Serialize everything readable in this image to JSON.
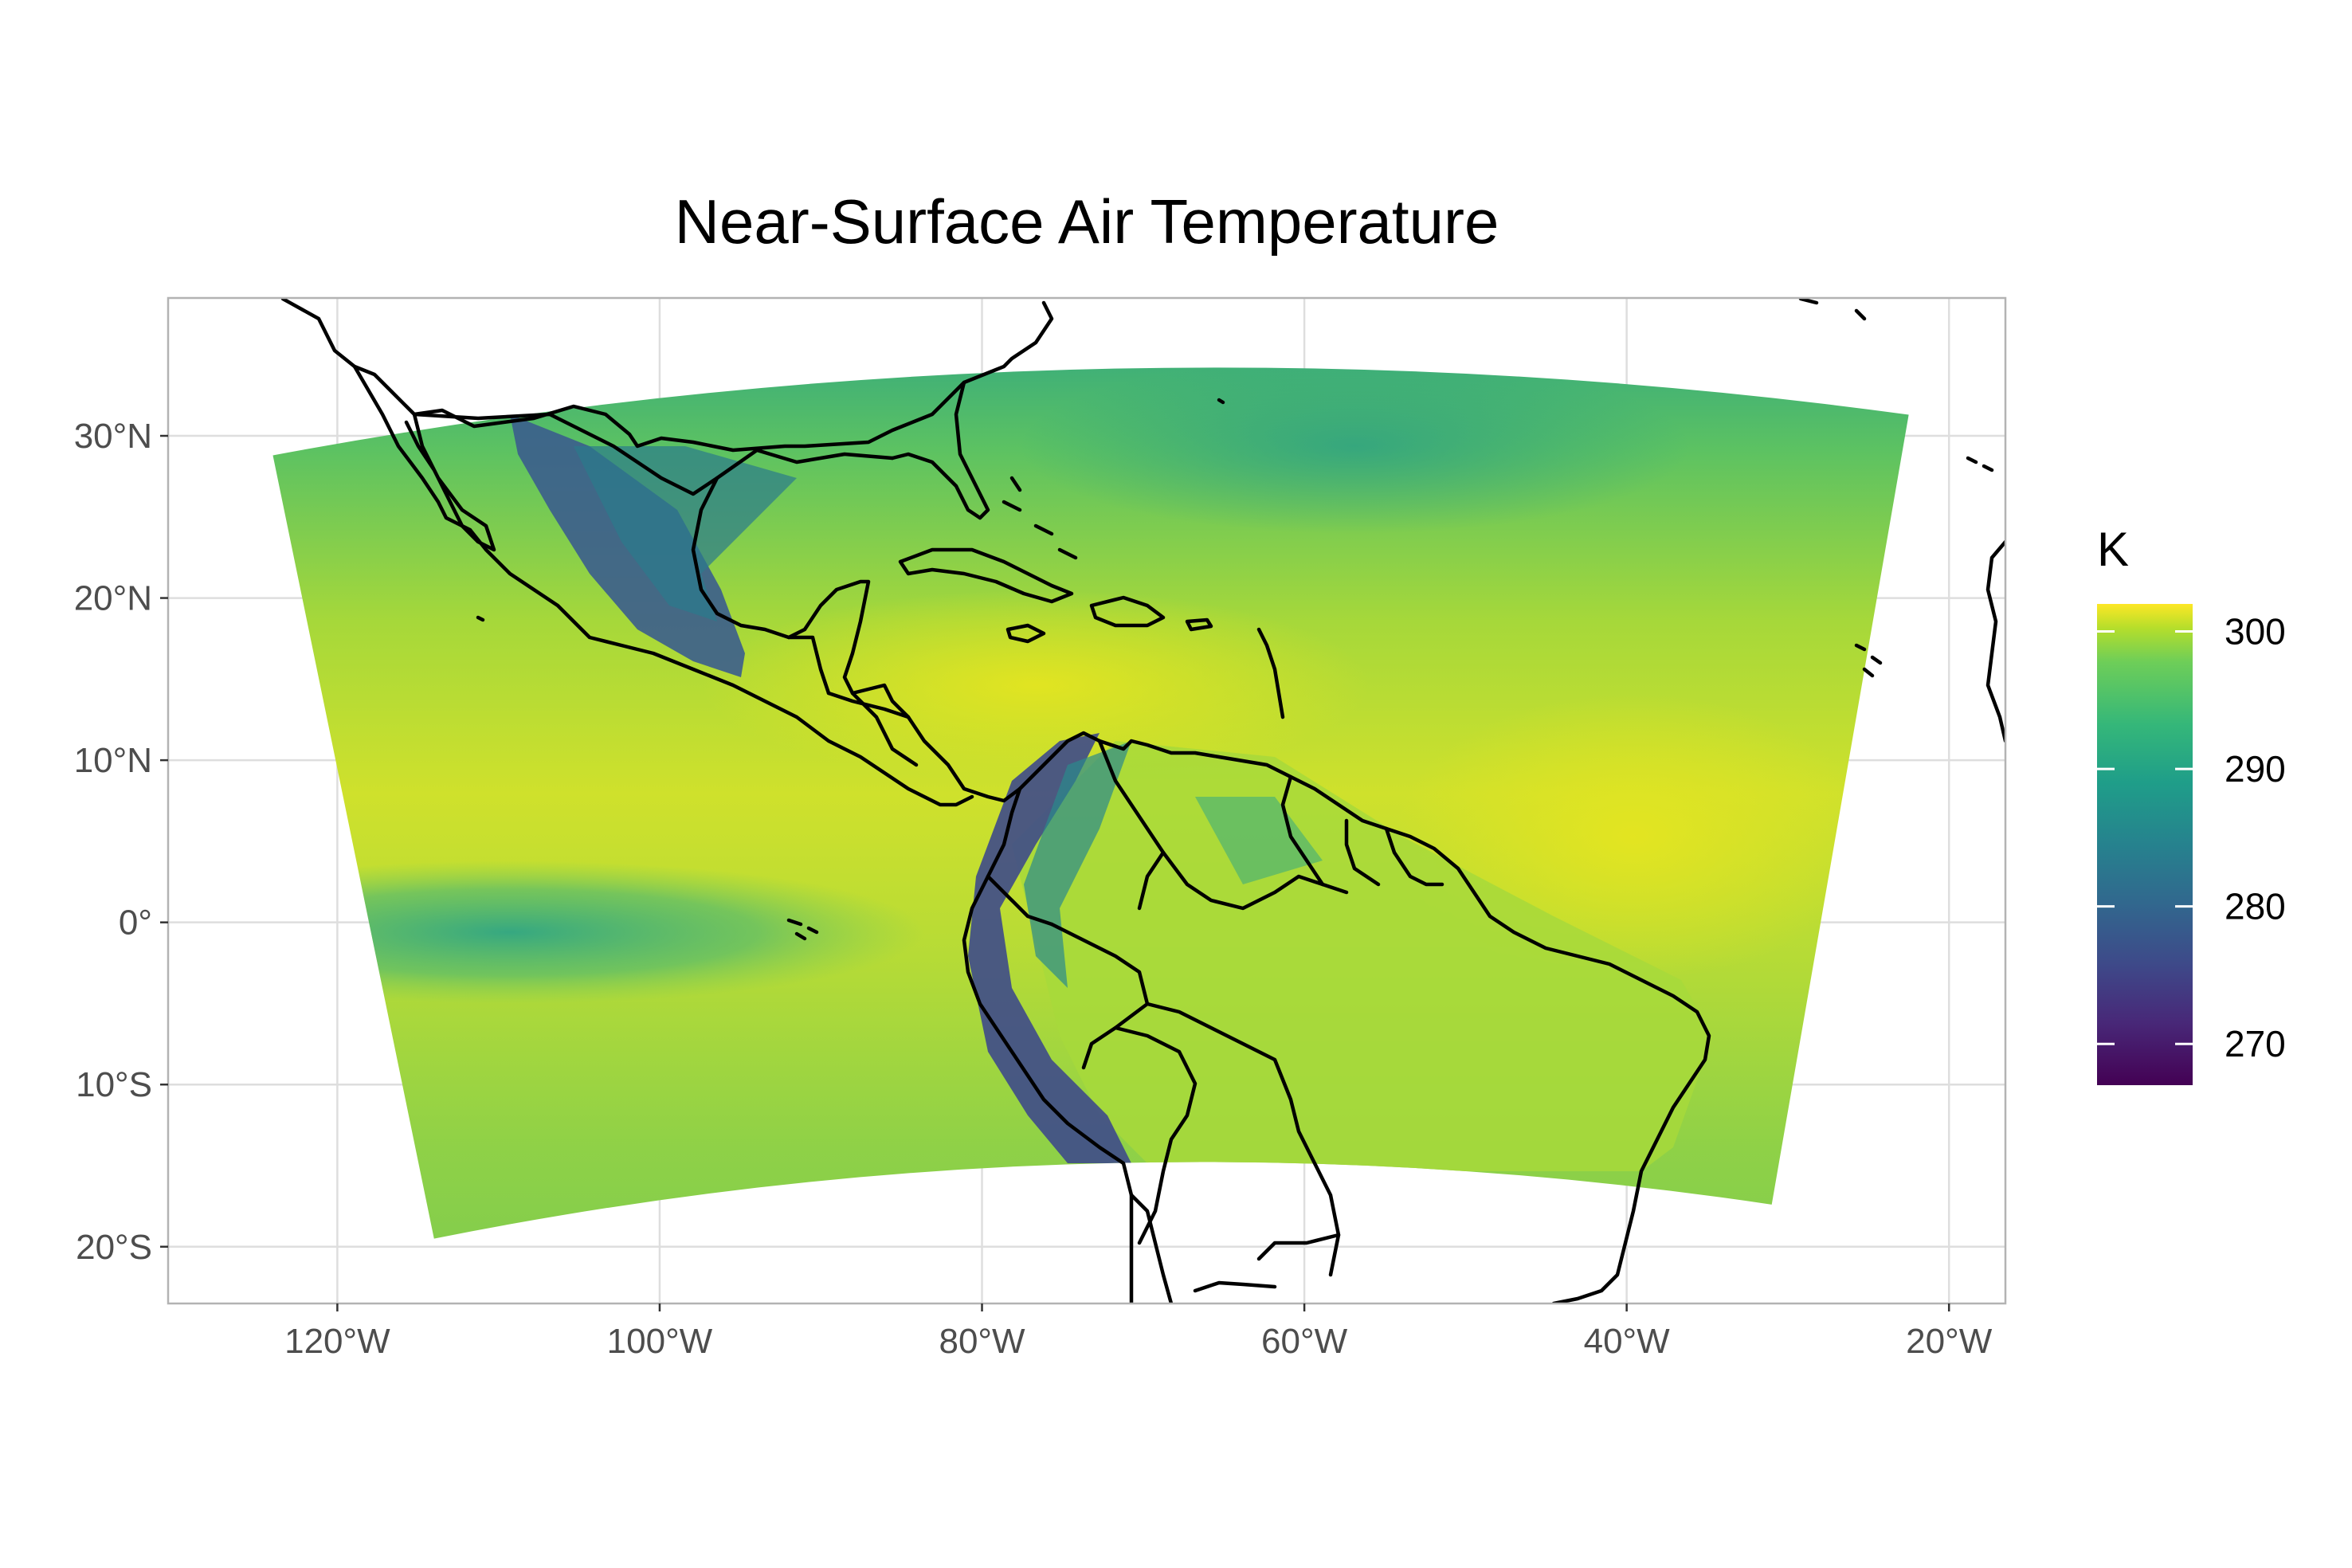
{
  "chart_data": {
    "type": "heatmap",
    "title": "Near-Surface Air Temperature",
    "xlabel": "",
    "ylabel": "",
    "x_ticks": [
      {
        "value": -120,
        "label": "120°W"
      },
      {
        "value": -100,
        "label": "100°W"
      },
      {
        "value": -80,
        "label": "80°W"
      },
      {
        "value": -60,
        "label": "60°W"
      },
      {
        "value": -40,
        "label": "40°W"
      },
      {
        "value": -20,
        "label": "20°W"
      }
    ],
    "y_ticks": [
      {
        "value": 30,
        "label": "30°N"
      },
      {
        "value": 20,
        "label": "20°N"
      },
      {
        "value": 10,
        "label": "10°N"
      },
      {
        "value": 0,
        "label": "0°"
      },
      {
        "value": -10,
        "label": "10°S"
      },
      {
        "value": -20,
        "label": "20°S"
      }
    ],
    "xlim": [
      -130.5,
      -16.5
    ],
    "ylim": [
      -23.5,
      38.5
    ],
    "grid": true,
    "legend": {
      "title": "K",
      "position": "right",
      "range": [
        267,
        302
      ],
      "ticks": [
        {
          "value": 270,
          "label": "270"
        },
        {
          "value": 280,
          "label": "280"
        },
        {
          "value": 290,
          "label": "290"
        },
        {
          "value": 300,
          "label": "300"
        }
      ],
      "colormap": "viridis"
    },
    "domain_corners": {
      "top_left": [
        -124,
        28.8
      ],
      "top_right": [
        -22.5,
        31.3
      ],
      "bottom_left": [
        -114,
        -19.5
      ],
      "bottom_right": [
        -31,
        -17.4
      ]
    },
    "field_summary": [
      {
        "region": "open tropical ocean",
        "temperature_k": 297
      },
      {
        "region": "equatorial Pacific cold tongue",
        "temperature_k": 291
      },
      {
        "region": "northern subtropical Atlantic",
        "temperature_k": 291
      },
      {
        "region": "Mexican highlands",
        "temperature_k": 281
      },
      {
        "region": "high Andes",
        "temperature_k": 276
      },
      {
        "region": "Amazon basin",
        "temperature_k": 297
      }
    ]
  }
}
